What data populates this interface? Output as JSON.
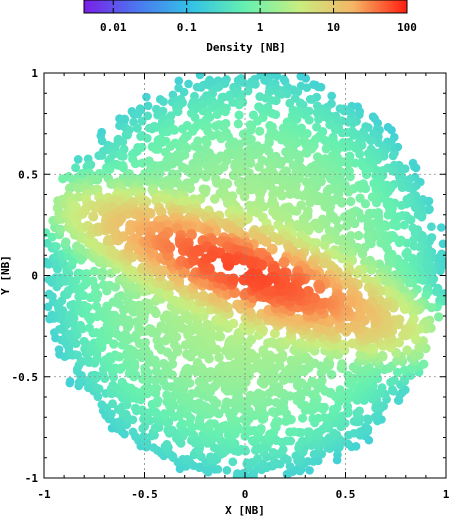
{
  "chart_data": {
    "type": "scatter",
    "title": "",
    "xlabel": "X [NB]",
    "ylabel": "Y [NB]",
    "xlim": [
      -1,
      1
    ],
    "ylim": [
      -1,
      1
    ],
    "x_ticks": [
      "-1",
      "-0.5",
      "0",
      "0.5",
      "1"
    ],
    "y_ticks": [
      "-1",
      "-0.5",
      "0",
      "0.5",
      "1"
    ],
    "grid": true,
    "colorbar": {
      "label": "Density [NB]",
      "scale": "log",
      "range": [
        0.004,
        100
      ],
      "ticks": [
        "0.01",
        "0.1",
        "1",
        "10",
        "100"
      ],
      "tick_values": [
        0.01,
        0.1,
        1,
        10,
        100
      ],
      "colormap": [
        "#7a1fe6",
        "#4a78f0",
        "#33c3e6",
        "#66f0b0",
        "#c8ee80",
        "#f5b565",
        "#ff1d10"
      ]
    },
    "distribution": {
      "shape": "disk",
      "radius": 1.0,
      "point_count": 3500,
      "central_bar": {
        "center": [
          0.0,
          0.02
        ],
        "half_length": 0.52,
        "half_width": 0.13,
        "angle_deg": -20,
        "peak_density": 60
      },
      "edge_density": 0.005
    }
  }
}
